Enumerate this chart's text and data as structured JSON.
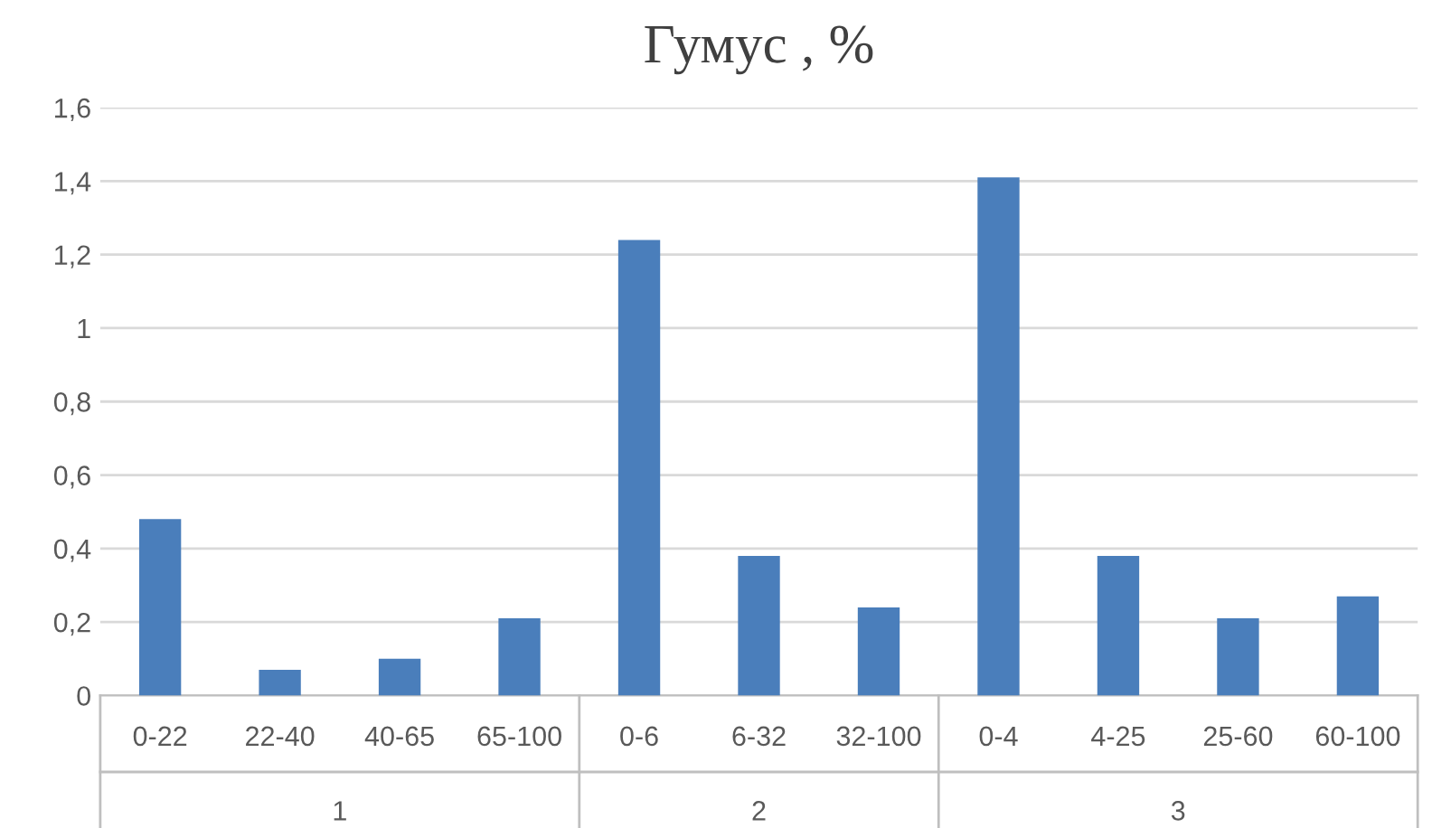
{
  "chart_data": {
    "type": "bar",
    "title": "Гумус , %",
    "categories": [
      "0-22",
      "22-40",
      "40-65",
      "65-100",
      "0-6",
      "6-32",
      "32-100",
      "0-4",
      "4-25",
      "25-60",
      "60-100"
    ],
    "values": [
      0.48,
      0.07,
      0.1,
      0.21,
      1.24,
      0.38,
      0.24,
      1.41,
      0.38,
      0.21,
      0.27
    ],
    "color": "#4a7ebb",
    "ylim": [
      0,
      1.6
    ],
    "yticks": [
      0,
      {
        "value": 0.2,
        "label": "0,2"
      },
      {
        "value": 0.4,
        "label": "0,4"
      },
      {
        "value": 0.6,
        "label": "0,6"
      },
      {
        "value": 0.8,
        "label": "0,8"
      },
      1,
      {
        "value": 1.2,
        "label": "1,2"
      },
      {
        "value": 1.4,
        "label": "1,4"
      },
      {
        "value": 1.6,
        "label": "1,6"
      }
    ],
    "grid": "y",
    "annotations": [
      "1",
      "2",
      "3"
    ]
  }
}
